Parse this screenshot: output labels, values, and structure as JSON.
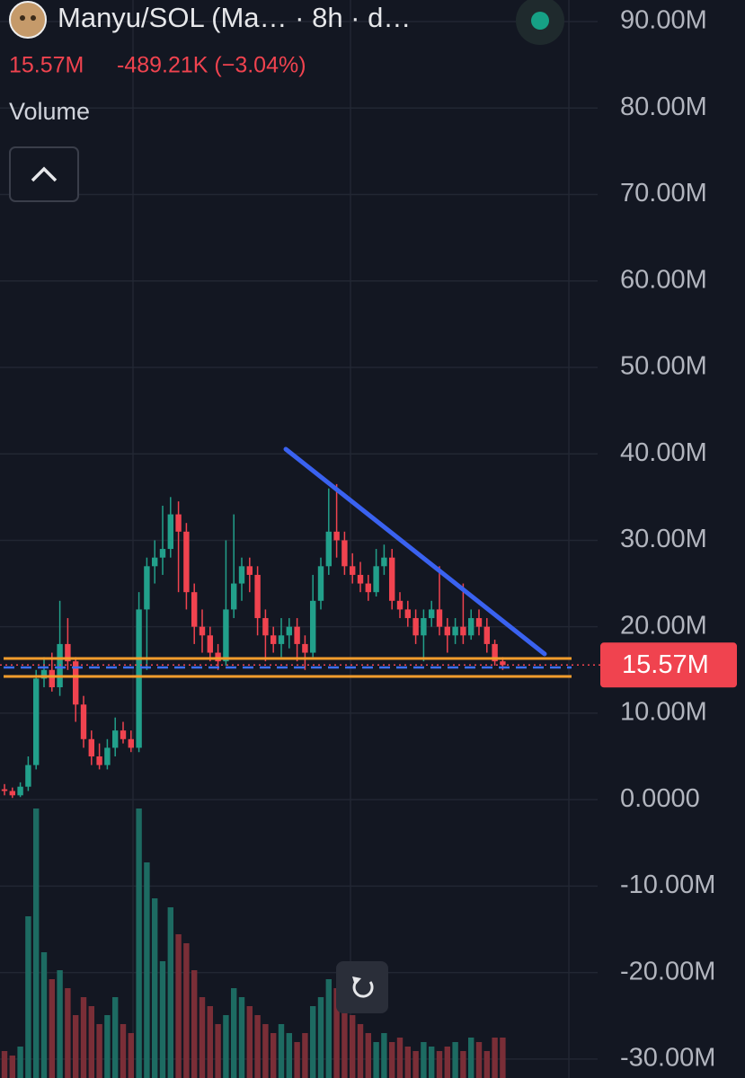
{
  "header": {
    "title": "Manyu/SOL (Ma… · 8h · d…",
    "price": "15.57M",
    "change": "-489.21K (−3.04%)",
    "indicator": "Volume"
  },
  "chart_data": {
    "type": "candlestick",
    "ylim": [
      -32.2,
      92.5
    ],
    "yticks": [
      {
        "value": 90,
        "label": "90.00M"
      },
      {
        "value": 80,
        "label": "80.00M"
      },
      {
        "value": 70,
        "label": "70.00M"
      },
      {
        "value": 60,
        "label": "60.00M"
      },
      {
        "value": 50,
        "label": "50.00M"
      },
      {
        "value": 40,
        "label": "40.00M"
      },
      {
        "value": 30,
        "label": "30.00M"
      },
      {
        "value": 20,
        "label": "20.00M"
      },
      {
        "value": 10,
        "label": "10.00M"
      },
      {
        "value": 0,
        "label": "0.0000"
      },
      {
        "value": -10,
        "label": "-10.00M"
      },
      {
        "value": -20,
        "label": "-20.00M"
      },
      {
        "value": -30,
        "label": "-30.00M"
      }
    ],
    "grid": true,
    "up_color": "#22a08b",
    "down_color": "#f0434f",
    "volume_up_color": "#1d6b62",
    "volume_down_color": "#7a2e37",
    "last_price": {
      "value": 15.57,
      "label": "15.57M"
    },
    "open": [
      1.2,
      1.0,
      0.5,
      1.5,
      4.0,
      14.0,
      15.0,
      13.0,
      18.0,
      16.0,
      11.0,
      7.0,
      5.0,
      4.0,
      6.0,
      8.0,
      7.0,
      6.0,
      22.0,
      27.0,
      28.0,
      29.0,
      33.0,
      31.0,
      24.0,
      20.0,
      19.0,
      17.0,
      16.0,
      22.0,
      25.0,
      27.0,
      26.0,
      21.0,
      19.0,
      18.0,
      19.0,
      20.0,
      18.0,
      17.0,
      23.0,
      27.0,
      31.0,
      30.0,
      27.0,
      26.0,
      25.0,
      24.0,
      27.0,
      28.0,
      23.0,
      22.0,
      21.0,
      19.0,
      21.0,
      22.0,
      20.0,
      19.0,
      20.0,
      19.0,
      21.0,
      20.0,
      18.0,
      16.0
    ],
    "high": [
      1.8,
      1.4,
      2.0,
      5.0,
      15.0,
      16.5,
      17.0,
      23.0,
      21.0,
      16.5,
      12.0,
      8.0,
      6.5,
      7.0,
      9.5,
      9.0,
      8.0,
      24.0,
      28.0,
      30.0,
      34.0,
      35.0,
      34.5,
      32.0,
      25.0,
      22.0,
      20.0,
      18.0,
      30.0,
      33.0,
      28.0,
      28.0,
      27.0,
      22.0,
      20.0,
      21.0,
      21.0,
      21.0,
      19.0,
      26.0,
      28.0,
      36.0,
      36.5,
      31.0,
      28.5,
      27.5,
      26.0,
      29.0,
      29.5,
      29.0,
      24.0,
      23.0,
      22.0,
      22.0,
      23.0,
      27.0,
      21.0,
      21.0,
      25.0,
      22.0,
      22.0,
      21.0,
      18.5,
      16.5
    ],
    "low": [
      0.5,
      0.2,
      0.3,
      1.0,
      3.5,
      13.0,
      12.5,
      12.0,
      15.0,
      9.0,
      6.0,
      4.0,
      3.5,
      3.5,
      5.0,
      6.5,
      5.5,
      5.5,
      15.0,
      25.0,
      26.0,
      28.0,
      24.0,
      22.0,
      18.0,
      17.0,
      16.0,
      15.0,
      15.5,
      21.0,
      23.0,
      24.0,
      19.0,
      16.0,
      17.0,
      16.5,
      17.5,
      16.0,
      15.0,
      16.5,
      22.0,
      26.0,
      28.0,
      26.0,
      25.0,
      24.0,
      23.0,
      23.5,
      26.0,
      22.0,
      21.0,
      20.0,
      18.0,
      16.0,
      20.0,
      19.0,
      17.0,
      18.0,
      18.0,
      18.5,
      19.0,
      17.0,
      15.5,
      15.0
    ],
    "close": [
      1.0,
      0.5,
      1.5,
      4.0,
      14.0,
      15.0,
      13.0,
      18.0,
      16.0,
      11.0,
      7.0,
      5.0,
      4.0,
      6.0,
      8.0,
      7.0,
      6.0,
      22.0,
      27.0,
      28.0,
      29.0,
      33.0,
      31.0,
      24.0,
      20.0,
      19.0,
      17.0,
      16.0,
      22.0,
      25.0,
      27.0,
      26.0,
      21.0,
      19.0,
      18.0,
      19.0,
      20.0,
      18.0,
      17.0,
      23.0,
      27.0,
      31.0,
      30.0,
      27.0,
      26.0,
      25.0,
      24.0,
      27.0,
      28.0,
      23.0,
      22.0,
      21.0,
      19.0,
      21.0,
      22.0,
      20.0,
      19.0,
      20.0,
      19.0,
      21.0,
      20.0,
      18.0,
      16.0,
      15.57
    ],
    "volume": [
      30,
      25,
      35,
      180,
      300,
      140,
      110,
      120,
      100,
      70,
      90,
      80,
      60,
      70,
      90,
      60,
      50,
      300,
      240,
      200,
      130,
      190,
      160,
      150,
      120,
      90,
      80,
      60,
      70,
      100,
      90,
      80,
      70,
      60,
      50,
      60,
      50,
      40,
      50,
      80,
      90,
      110,
      100,
      80,
      70,
      60,
      50,
      40,
      50,
      40,
      45,
      35,
      30,
      40,
      35,
      30,
      35,
      40,
      30,
      45,
      40,
      30,
      45,
      45
    ]
  }
}
